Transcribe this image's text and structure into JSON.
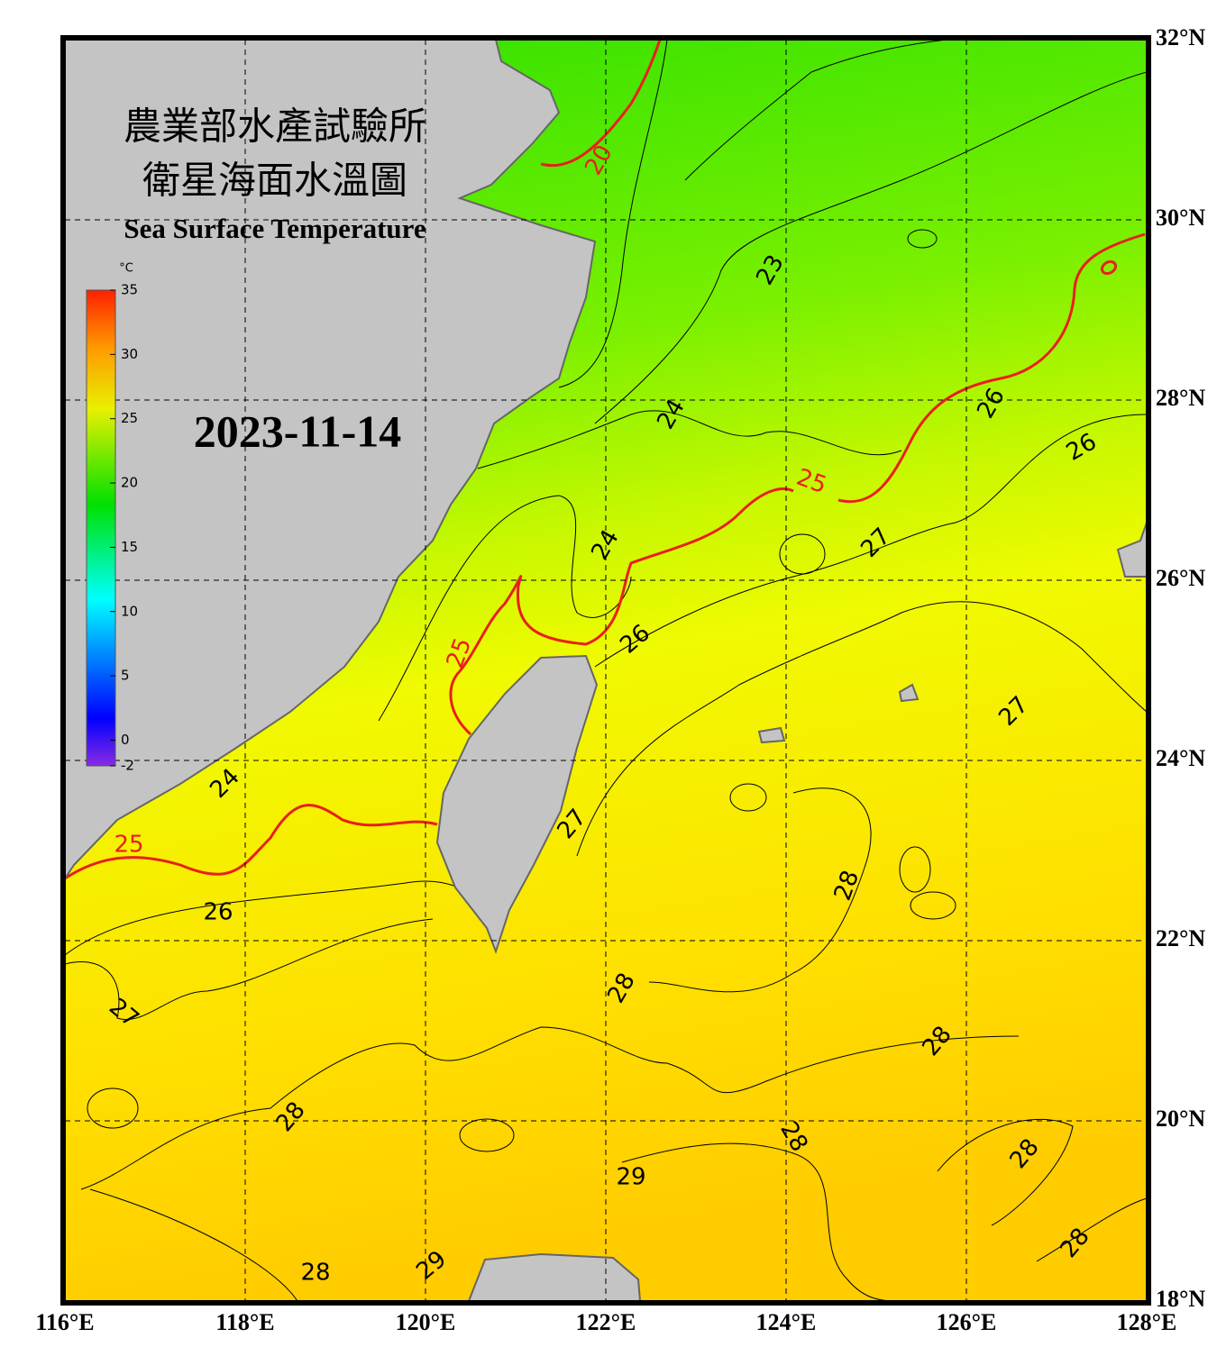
{
  "header": {
    "title_zh_1": "農業部水產試驗所",
    "title_zh_2": "衛星海面水溫圖",
    "title_en": "Sea Surface Temperature",
    "date": "2023-11-14"
  },
  "colorbar": {
    "unit": "°C",
    "lim": [
      -2,
      35
    ],
    "ticks": [
      35,
      30,
      25,
      20,
      15,
      10,
      5,
      0,
      -2
    ]
  },
  "map": {
    "lonlim": [
      116,
      128
    ],
    "latlim": [
      18,
      32
    ],
    "lat_ticks": [
      {
        "value": 32,
        "label": "32°N"
      },
      {
        "value": 30,
        "label": "30°N"
      },
      {
        "value": 28,
        "label": "28°N"
      },
      {
        "value": 26,
        "label": "26°N"
      },
      {
        "value": 24,
        "label": "24°N"
      },
      {
        "value": 22,
        "label": "22°N"
      },
      {
        "value": 20,
        "label": "20°N"
      },
      {
        "value": 18,
        "label": "18°N"
      }
    ],
    "lon_ticks": [
      {
        "value": 116,
        "label": "116°E"
      },
      {
        "value": 118,
        "label": "118°E"
      },
      {
        "value": 120,
        "label": "120°E"
      },
      {
        "value": 122,
        "label": "122°E"
      },
      {
        "value": 124,
        "label": "124°E"
      },
      {
        "value": 126,
        "label": "126°E"
      },
      {
        "value": 128,
        "label": "128°E"
      }
    ]
  },
  "contour_labels": [
    20,
    23,
    24,
    25,
    26,
    26,
    27,
    24,
    25,
    26,
    27,
    24,
    25,
    27,
    28,
    26,
    28,
    27,
    28,
    28,
    28,
    28,
    29,
    28,
    28,
    29
  ]
}
